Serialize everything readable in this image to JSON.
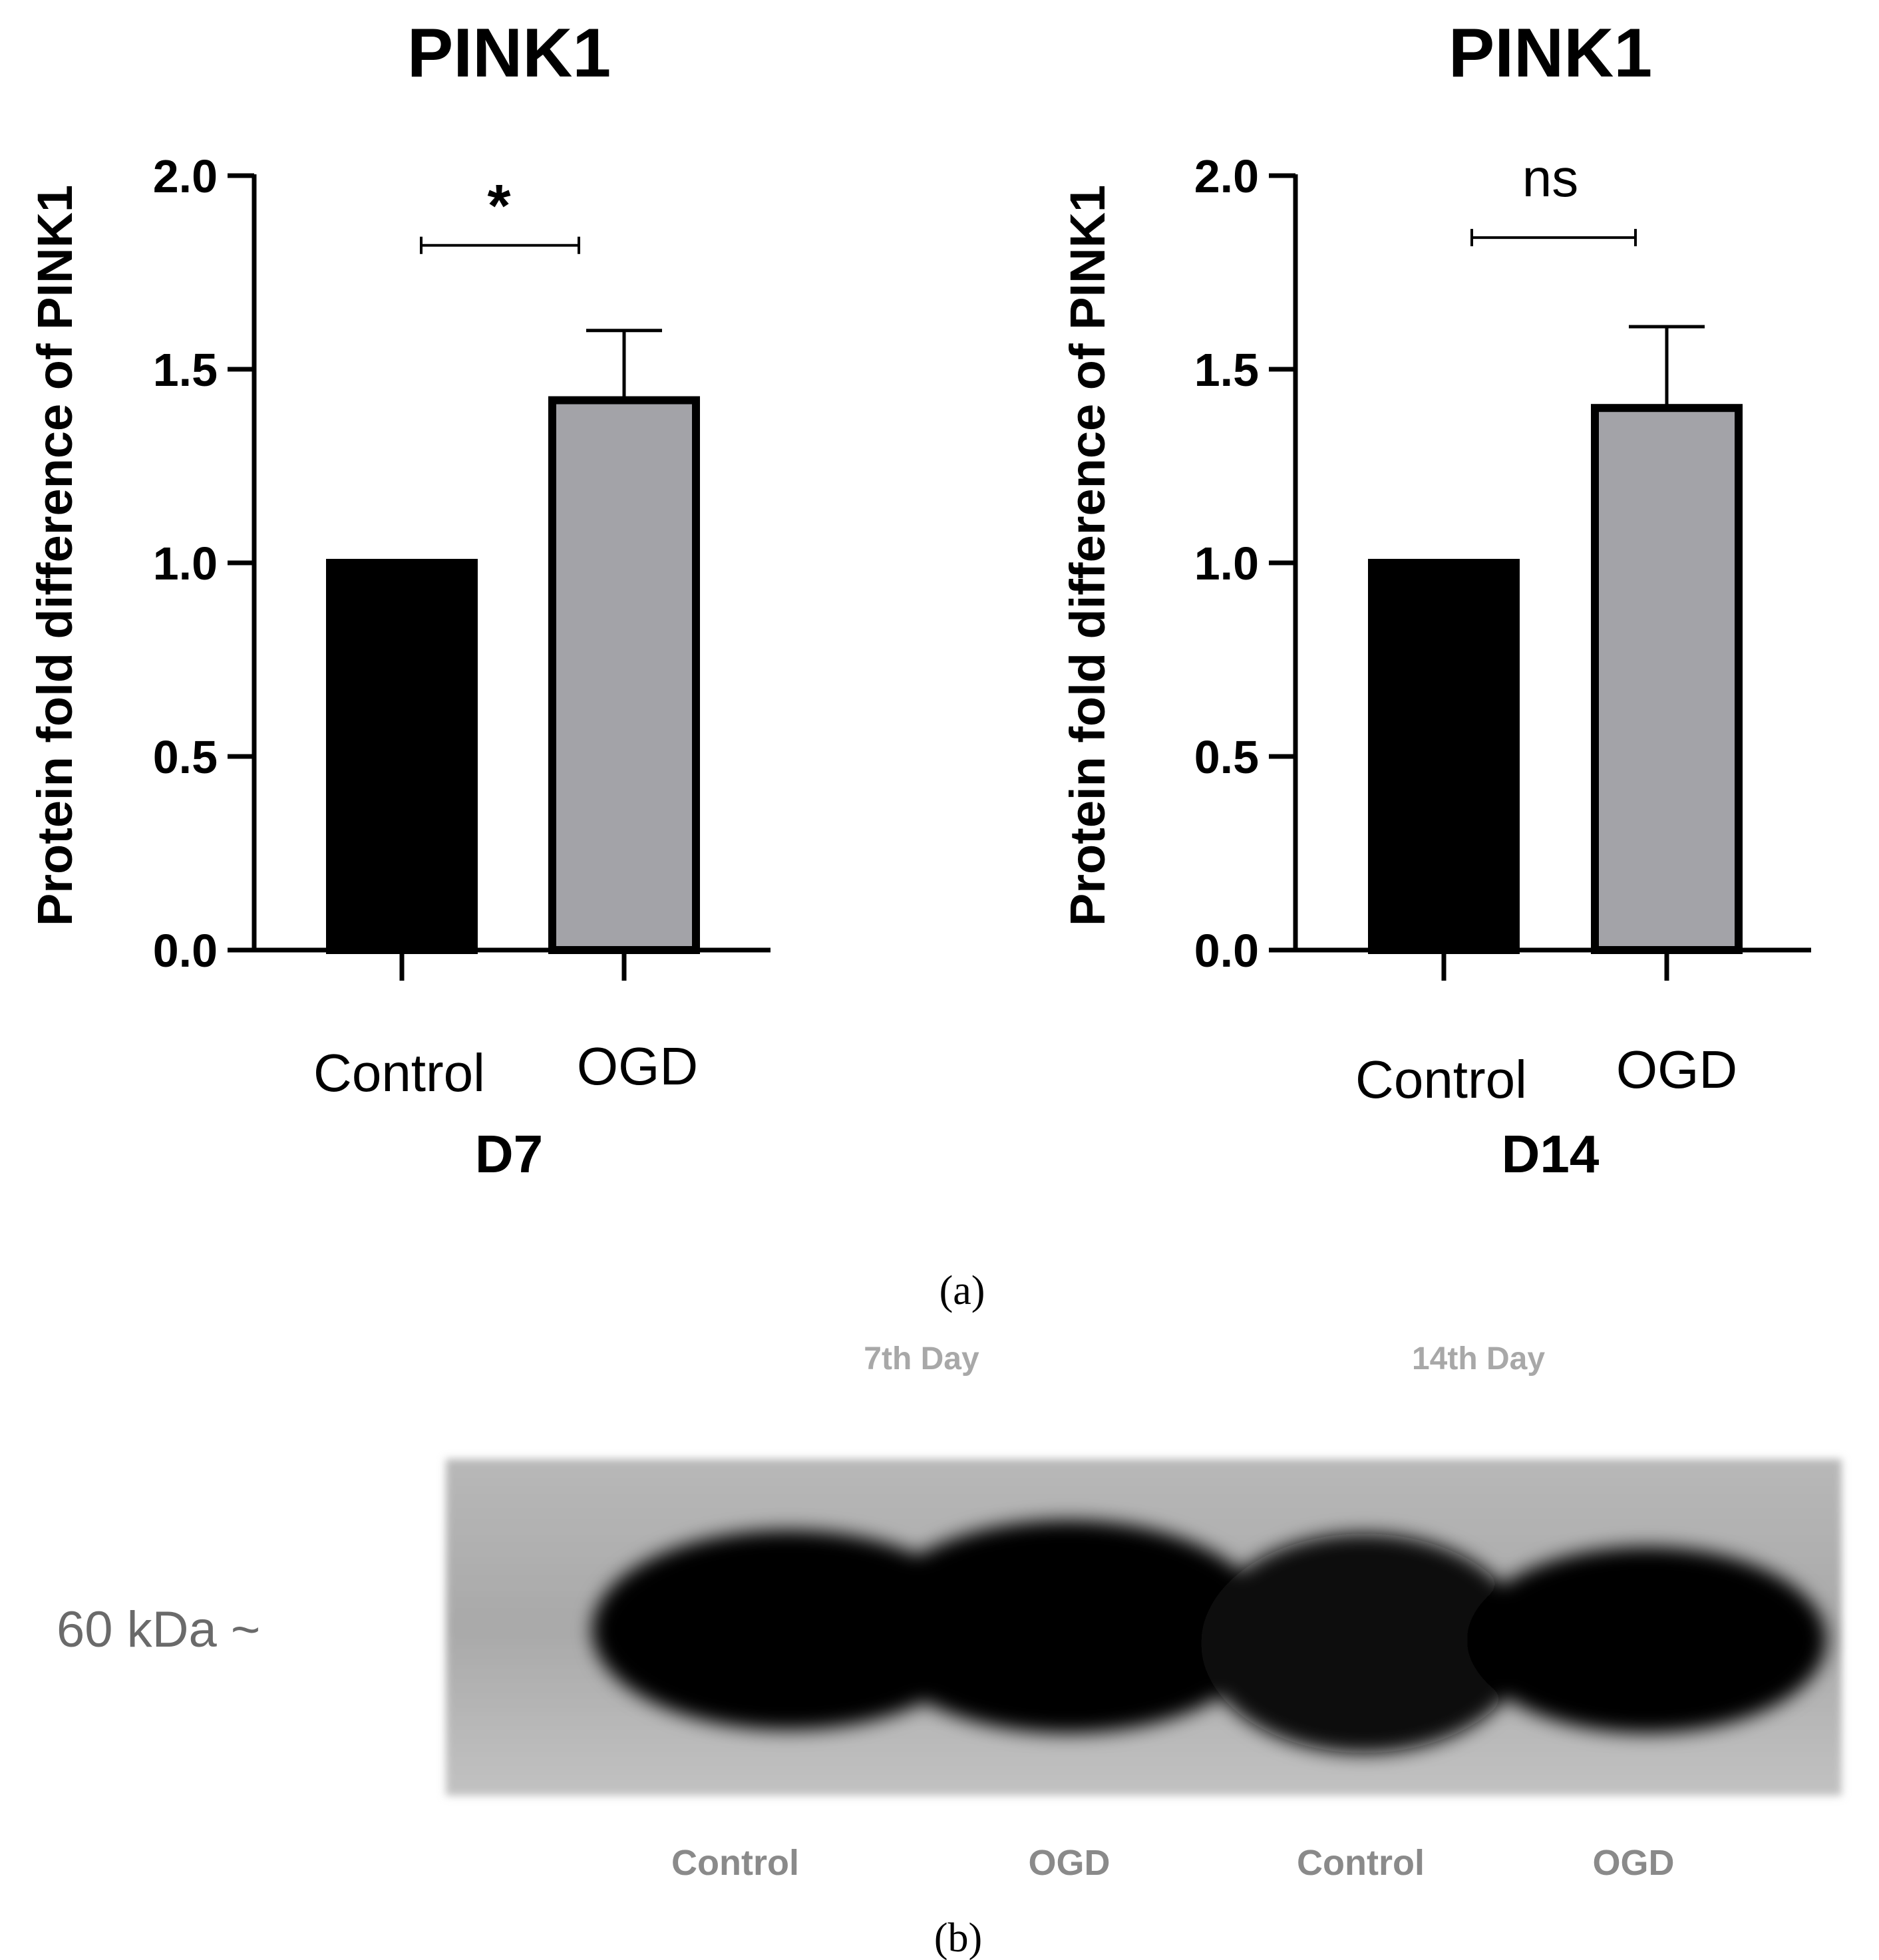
{
  "chart_data": [
    {
      "type": "bar",
      "title": "PINK1",
      "ylabel": "Protein fold difference of PINK1",
      "xlabel": "D7",
      "categories": [
        "Control",
        "OGD"
      ],
      "values": [
        1.0,
        1.42
      ],
      "errors": [
        0,
        0.18
      ],
      "ylim": [
        0,
        2.0
      ],
      "yticks": [
        0.0,
        0.5,
        1.0,
        1.5,
        2.0
      ],
      "ytick_labels": [
        "0.0",
        "0.5",
        "1.0",
        "1.5",
        "2.0"
      ],
      "colors": [
        "#000000",
        "#a3a3a8"
      ],
      "significance": {
        "label": "*",
        "bracket_y": 1.82
      }
    },
    {
      "type": "bar",
      "title": "PINK1",
      "ylabel": "Protein fold difference of PINK1",
      "xlabel": "D14",
      "categories": [
        "Control",
        "OGD"
      ],
      "values": [
        1.0,
        1.4
      ],
      "errors": [
        0,
        0.21
      ],
      "ylim": [
        0,
        2.0
      ],
      "yticks": [
        0.0,
        0.5,
        1.0,
        1.5,
        2.0
      ],
      "ytick_labels": [
        "0.0",
        "0.5",
        "1.0",
        "1.5",
        "2.0"
      ],
      "colors": [
        "#000000",
        "#a3a3a8"
      ],
      "significance": {
        "label": "ns",
        "bracket_y": 1.84
      }
    }
  ],
  "panel_labels": {
    "a": "(a)",
    "b": "(b)"
  },
  "blot": {
    "marker": "60 kDa ~",
    "groups": [
      "7th Day",
      "14th Day"
    ],
    "lanes": [
      "Control",
      "OGD",
      "Control",
      "OGD"
    ]
  }
}
